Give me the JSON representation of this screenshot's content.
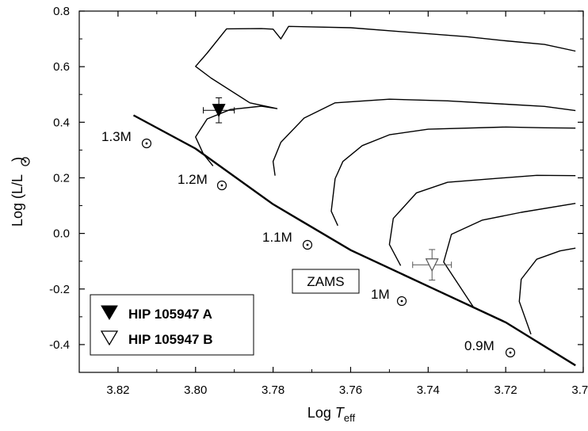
{
  "chart_data": {
    "type": "scatter",
    "title": "",
    "xlabel": "Log T_eff",
    "xlabel_main": "Log ",
    "xlabel_T": "T",
    "xlabel_sub": "eff",
    "ylabel": "Log (L/L⊙)",
    "ylabel_main": "Log (L/L",
    "ylabel_end": ")",
    "xlim": [
      3.83,
      3.7
    ],
    "ylim": [
      -0.5,
      0.8
    ],
    "x_reversed": true,
    "x_ticks": [
      "3.82",
      "3.80",
      "3.78",
      "3.76",
      "3.74",
      "3.72",
      "3.70"
    ],
    "y_ticks": [
      "0.8",
      "0.6",
      "0.4",
      "0.2",
      "0.0",
      "-0.2",
      "-0.4"
    ],
    "zams": {
      "label": "ZAMS",
      "points": [
        [
          3.816,
          0.425
        ],
        [
          3.8,
          0.305
        ],
        [
          3.78,
          0.105
        ],
        [
          3.76,
          -0.06
        ],
        [
          3.74,
          -0.19
        ],
        [
          3.72,
          -0.32
        ],
        [
          3.702,
          -0.475
        ]
      ]
    },
    "tracks": [
      {
        "label": "1.3M",
        "points": [
          [
            3.7955,
            0.243
          ],
          [
            3.798,
            0.286
          ],
          [
            3.8,
            0.347
          ],
          [
            3.797,
            0.412
          ],
          [
            3.791,
            0.446
          ],
          [
            3.783,
            0.458
          ],
          [
            3.779,
            0.449
          ],
          [
            3.786,
            0.47
          ],
          [
            3.796,
            0.559
          ],
          [
            3.8,
            0.601
          ],
          [
            3.797,
            0.649
          ],
          [
            3.792,
            0.736
          ],
          [
            3.783,
            0.737
          ],
          [
            3.78,
            0.735
          ],
          [
            3.778,
            0.7
          ],
          [
            3.776,
            0.745
          ],
          [
            3.76,
            0.74
          ],
          [
            3.745,
            0.724
          ],
          [
            3.73,
            0.708
          ],
          [
            3.72,
            0.693
          ],
          [
            3.71,
            0.68
          ],
          [
            3.702,
            0.656
          ]
        ]
      },
      {
        "label": "1.2M",
        "points": [
          [
            3.7795,
            0.208
          ],
          [
            3.78,
            0.259
          ],
          [
            3.778,
            0.328
          ],
          [
            3.772,
            0.415
          ],
          [
            3.764,
            0.47
          ],
          [
            3.75,
            0.483
          ],
          [
            3.735,
            0.477
          ],
          [
            3.72,
            0.465
          ],
          [
            3.71,
            0.457
          ],
          [
            3.702,
            0.442
          ]
        ]
      },
      {
        "label": "1.1M",
        "points": [
          [
            3.7633,
            0.028
          ],
          [
            3.765,
            0.08
          ],
          [
            3.764,
            0.197
          ],
          [
            3.762,
            0.259
          ],
          [
            3.757,
            0.316
          ],
          [
            3.75,
            0.355
          ],
          [
            3.74,
            0.375
          ],
          [
            3.72,
            0.383
          ],
          [
            3.71,
            0.38
          ],
          [
            3.702,
            0.379
          ]
        ]
      },
      {
        "label": "1M",
        "points": [
          [
            3.7471,
            -0.116
          ],
          [
            3.75,
            -0.04
          ],
          [
            3.749,
            0.054
          ],
          [
            3.743,
            0.146
          ],
          [
            3.735,
            0.184
          ],
          [
            3.725,
            0.195
          ],
          [
            3.712,
            0.209
          ],
          [
            3.702,
            0.208
          ]
        ]
      },
      {
        "label": "0.9M",
        "points": [
          [
            3.7281,
            -0.27
          ],
          [
            3.736,
            -0.103
          ],
          [
            3.734,
            -0.003
          ],
          [
            3.726,
            0.048
          ],
          [
            3.716,
            0.076
          ],
          [
            3.702,
            0.108
          ]
        ]
      },
      {
        "label": "",
        "points": [
          [
            3.7135,
            -0.363
          ],
          [
            3.7165,
            -0.245
          ],
          [
            3.716,
            -0.165
          ],
          [
            3.712,
            -0.093
          ],
          [
            3.706,
            -0.063
          ],
          [
            3.702,
            -0.053
          ]
        ]
      }
    ],
    "stars": [
      {
        "name": "HIP 105947 A",
        "logTeff": 3.794,
        "logL": 0.443,
        "xerr": 0.004,
        "yerr": 0.045,
        "filled": true
      },
      {
        "name": "HIP 105947 B",
        "logTeff": 3.739,
        "logL": -0.113,
        "xerr": 0.005,
        "yerr": 0.055,
        "filled": false
      }
    ],
    "grid": false,
    "legend_position": "bottom-left"
  },
  "colors": {
    "line": "#000000",
    "background": "#ffffff"
  }
}
